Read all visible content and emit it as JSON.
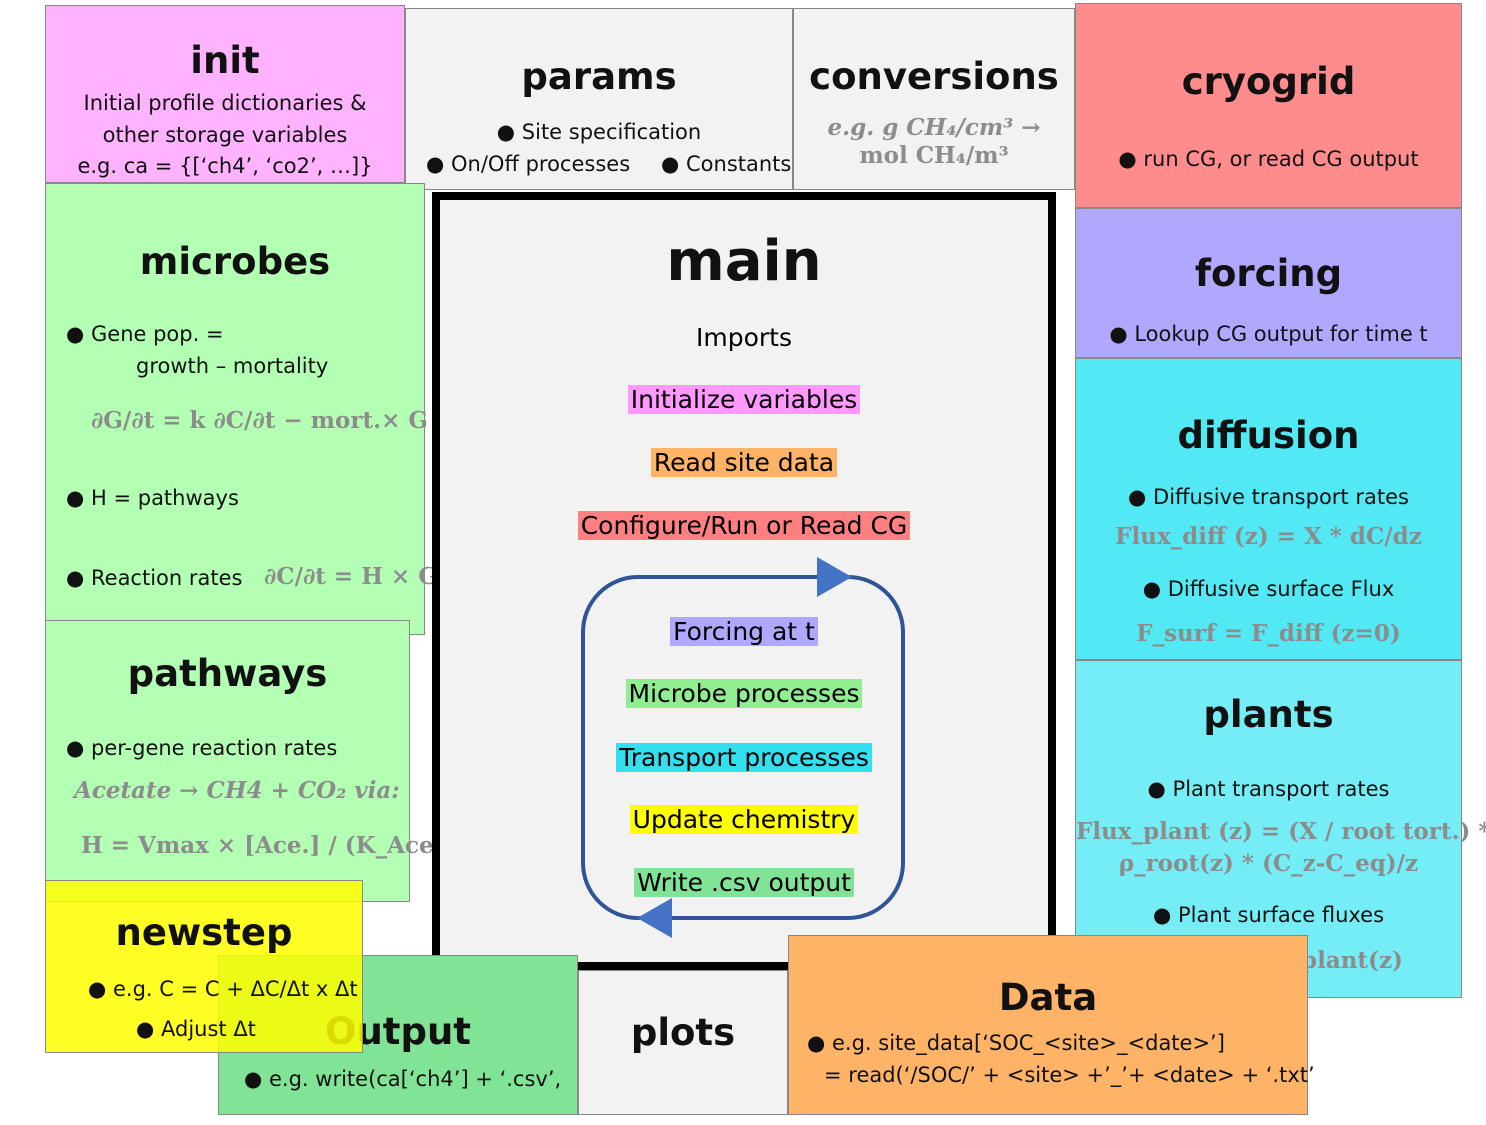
{
  "boxes": [
    {
      "title": "init",
      "lines": [
        "Initial profile dictionaries &",
        "other storage variables",
        "e.g. ca = {[‘ch4’, ‘co2’, …]}"
      ]
    },
    {
      "title": "params",
      "lines": [
        "● Site specification",
        "● On/Off processes",
        "● Constants"
      ]
    },
    {
      "title": "conversions",
      "lines": [
        "e.g.  g CH₄/cm³ →",
        "mol CH₄/m³"
      ]
    },
    {
      "title": "cryogrid",
      "lines": [
        "● run CG, or read CG output"
      ]
    },
    {
      "title": "forcing",
      "lines": [
        "● Lookup CG output for time t"
      ]
    },
    {
      "title": "diffusion",
      "lines": [
        "● Diffusive transport rates",
        "Flux_diff (z) = X * dC/dz",
        "● Diffusive surface Flux",
        "F_surf = F_diff (z=0)"
      ]
    },
    {
      "title": "plants",
      "lines": [
        "● Plant transport rates",
        "Flux_plant (z) = (X / root tort.) *",
        "ρ_root(z) * (C_z-C_eq)/z",
        "● Plant surface fluxes",
        "F_surf = Σ F_plant(z)"
      ]
    },
    {
      "title": "microbes",
      "lines": [
        "● Gene pop. =",
        "growth – mortality",
        "∂G/∂t = k ∂C/∂t − mort.× G",
        "● H = pathways",
        "● Reaction rates",
        "∂C/∂t = H × G"
      ]
    },
    {
      "title": "pathways",
      "lines": [
        "● per-gene reaction rates",
        "Acetate → CH4 + CO₂ via:",
        "H = Vmax × [Ace.] / (K_Ace+[Ace.])"
      ]
    },
    {
      "title": "Data",
      "lines": [
        "● e.g.  site_data[‘SOC_<site>_<date>’]",
        "= read(‘/SOC/’ + <site> +’_’+ <date> + ‘.txt’"
      ]
    },
    {
      "title": "Output",
      "lines": [
        "● e.g. write(ca[‘ch4’] + ‘.csv’,"
      ]
    },
    {
      "title": "plots",
      "lines": []
    },
    {
      "title": "newstep",
      "lines": [
        "● e.g. C = C + ΔC/Δt x Δt",
        "● Adjust  Δt"
      ]
    }
  ],
  "main": {
    "title": "main",
    "items": [
      "Imports",
      "Initialize variables",
      "Read site data",
      "Configure/Run or Read CG",
      "Forcing at t",
      "Microbe processes",
      "Transport processes",
      "Update chemistry",
      "Write .csv output"
    ]
  }
}
